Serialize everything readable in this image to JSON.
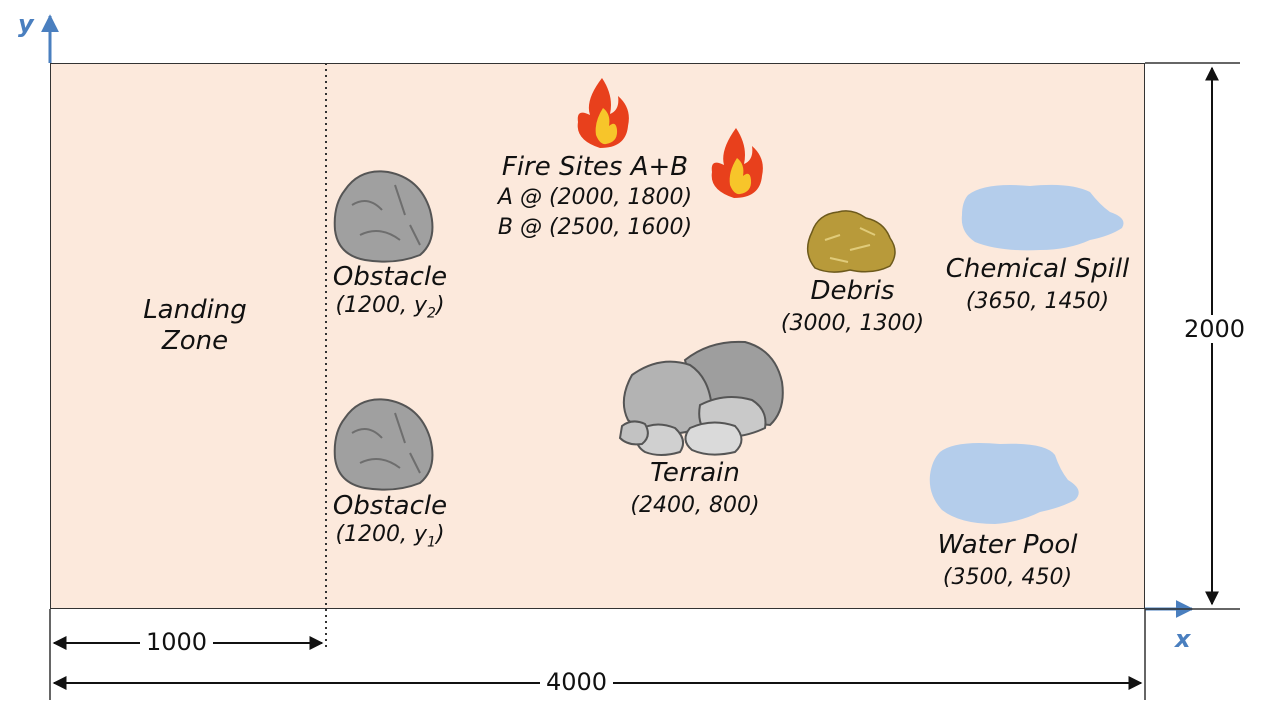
{
  "axes": {
    "x_label": "x",
    "y_label": "y"
  },
  "dimensions": {
    "width": "4000",
    "height": "2000",
    "landing_width": "1000"
  },
  "landing_zone": {
    "line1": "Landing",
    "line2": "Zone"
  },
  "obstacles": [
    {
      "name": "Obstacle",
      "coord_prefix": "(1200, y",
      "subscript": "2",
      "coord_suffix": ")"
    },
    {
      "name": "Obstacle",
      "coord_prefix": "(1200, y",
      "subscript": "1",
      "coord_suffix": ")"
    }
  ],
  "fire_sites": {
    "title": "Fire Sites A+B",
    "a": "A @ (2000, 1800)",
    "b": "B @ (2500, 1600)"
  },
  "debris": {
    "name": "Debris",
    "coord": "(3000, 1300)"
  },
  "chemical_spill": {
    "name": "Chemical Spill",
    "coord": "(3650, 1450)"
  },
  "terrain": {
    "name": "Terrain",
    "coord": "(2400, 800)"
  },
  "water_pool": {
    "name": "Water Pool",
    "coord": "(3500, 450)"
  },
  "colors": {
    "field": "#fce9dc",
    "axis": "#4a7fbf",
    "water": "#b4cdeb",
    "rock": "#a9a9a9",
    "fire_outer": "#e8401c",
    "fire_inner": "#f7c52a",
    "debris": "#b89a3a"
  }
}
